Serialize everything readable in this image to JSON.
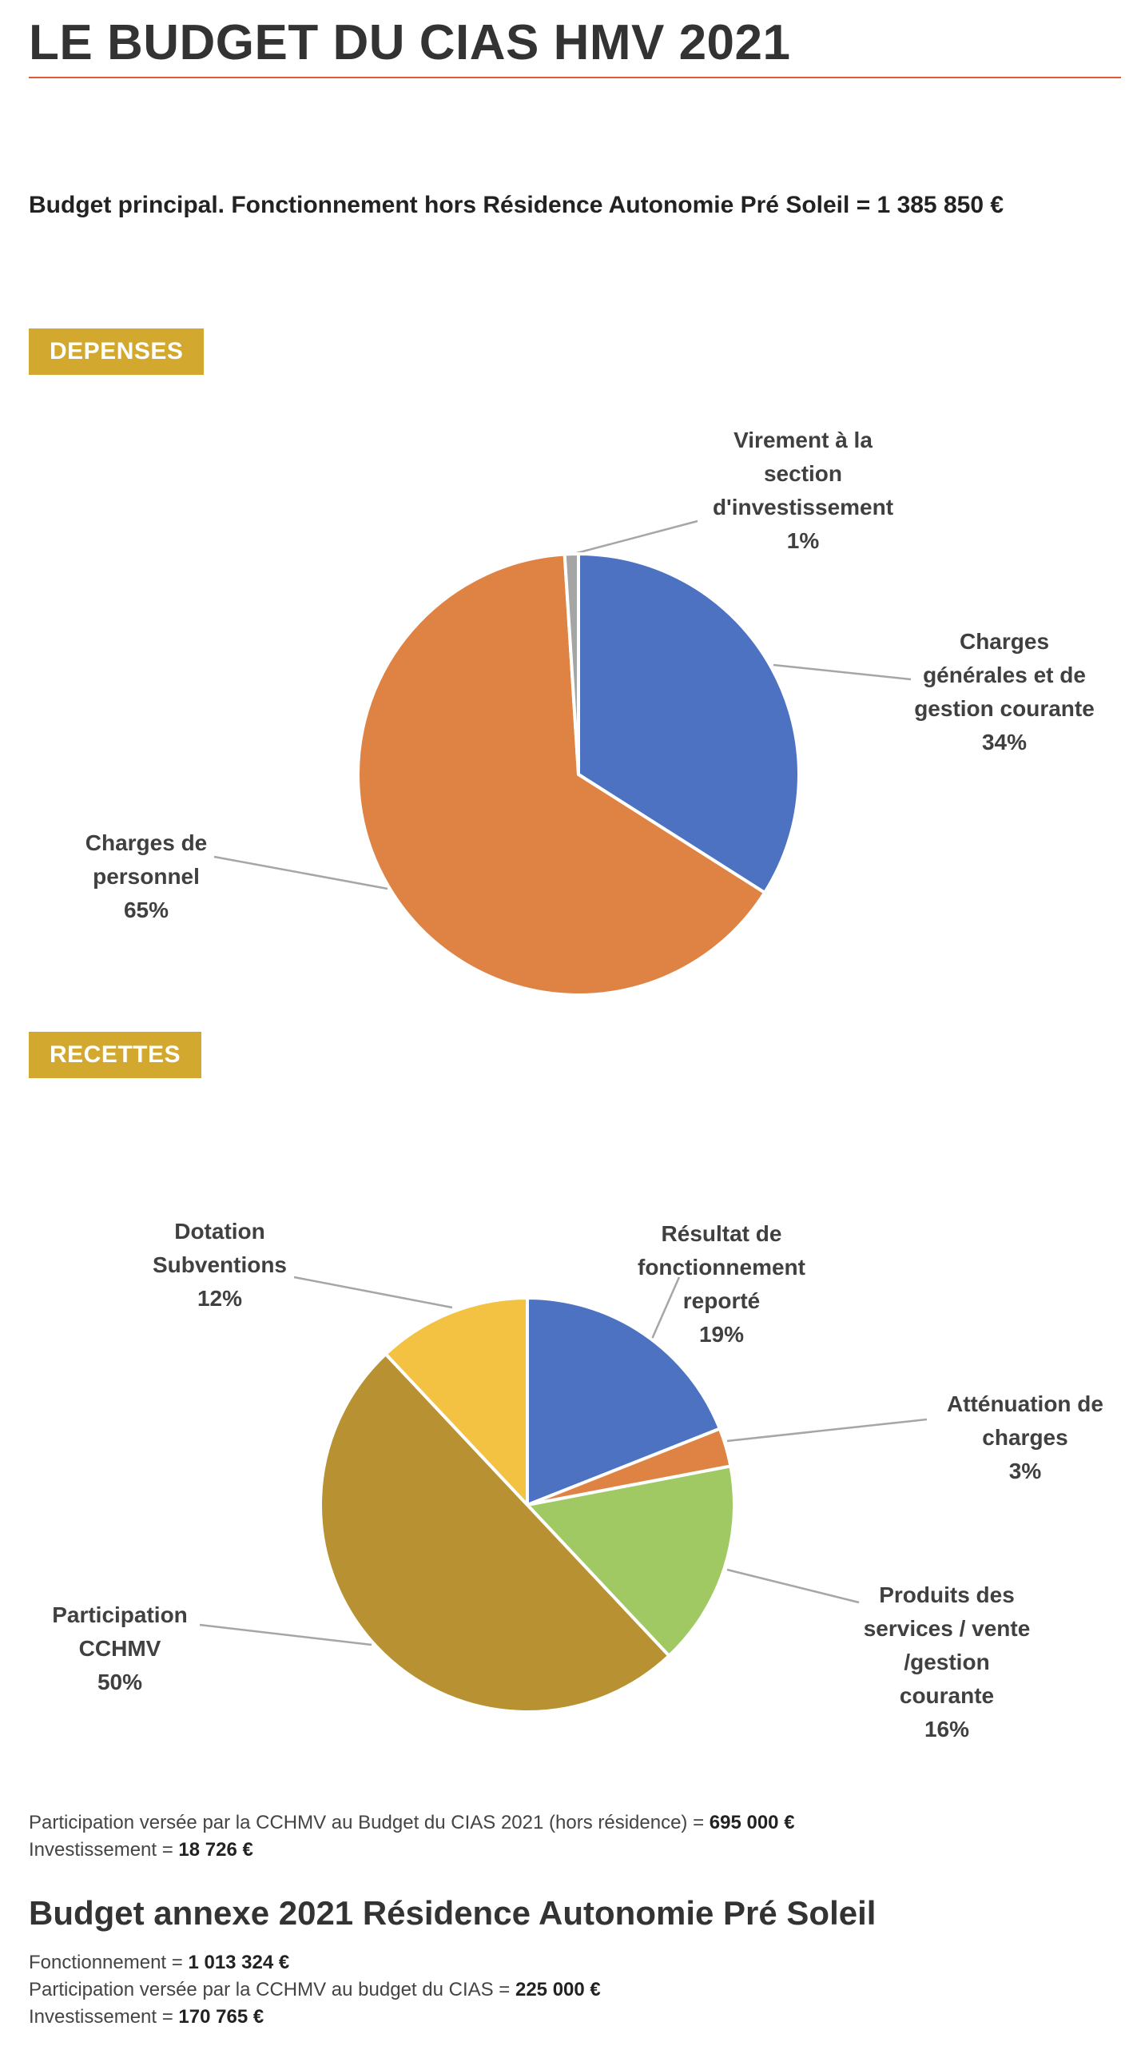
{
  "page": {
    "title": "LE BUDGET DU CIAS HMV 2021",
    "subtitle": "Budget principal. Fonctionnement hors Résidence Autonomie Pré Soleil = 1 385 850 €",
    "depenses_label": "DEPENSES",
    "recettes_label": "RECETTES",
    "accent_color": "#e05a3a",
    "badge_color": "#d3a82e"
  },
  "notes": {
    "participation_prefix": "Participation versée par la CCHMV au Budget du CIAS 2021 (hors résidence) = ",
    "participation_value": "695 000 €",
    "investissement_prefix": "Investissement = ",
    "investissement_value": "18 726 €"
  },
  "annex": {
    "title": "Budget annexe 2021 Résidence Autonomie Pré Soleil",
    "fonctionnement_prefix": "Fonctionnement = ",
    "fonctionnement_value": "1 013 324 €",
    "participation_prefix": "Participation versée par la CCHMV au budget du CIAS = ",
    "participation_value": "225 000 €",
    "investissement_prefix": "Investissement = ",
    "investissement_value": "170 765 €"
  },
  "chart_data": [
    {
      "type": "pie",
      "title": "",
      "slices": [
        {
          "label_lines": [
            "Charges",
            "générales et de",
            "gestion courante",
            "34%"
          ],
          "value": 34,
          "color": "#4e72c2"
        },
        {
          "label_lines": [
            "Charges de",
            "personnel",
            "65%"
          ],
          "value": 65,
          "color": "#df8344"
        },
        {
          "label_lines": [
            "Virement à la",
            "section",
            "d'investissement",
            "1%"
          ],
          "value": 1,
          "color": "#a5a5a5"
        }
      ]
    },
    {
      "type": "pie",
      "title": "",
      "slices": [
        {
          "label_lines": [
            "Résultat de",
            "fonctionnement",
            "reporté",
            "19%"
          ],
          "value": 19,
          "color": "#4e72c2"
        },
        {
          "label_lines": [
            "Atténuation de",
            "charges",
            "3%"
          ],
          "value": 3,
          "color": "#df8344"
        },
        {
          "label_lines": [
            "Produits des",
            "services / vente",
            "/gestion",
            "courante",
            "16%"
          ],
          "value": 16,
          "color": "#a0c964"
        },
        {
          "label_lines": [
            "Participation",
            "CCHMV",
            "50%"
          ],
          "value": 50,
          "color": "#b89232"
        },
        {
          "label_lines": [
            "Dotation",
            "Subventions",
            "12%"
          ],
          "value": 12,
          "color": "#f3c243"
        }
      ]
    }
  ]
}
